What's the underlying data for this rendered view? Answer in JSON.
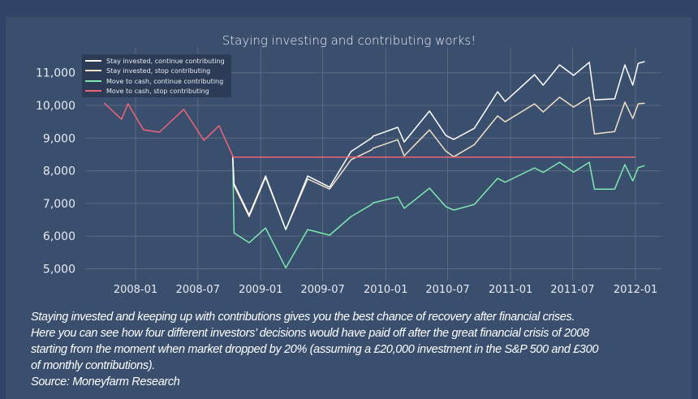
{
  "chart_data": {
    "type": "line",
    "title": "Staying investing and contributing works!",
    "xlabel": "",
    "ylabel": "",
    "ylim": [
      4900,
      11700
    ],
    "xlim": [
      "2007-08-15",
      "2012-03-01"
    ],
    "grid": true,
    "legend_placement": "top-left",
    "y_ticks": [
      "5,000",
      "6,000",
      "7,000",
      "8,000",
      "9,000",
      "10,000",
      "11,000"
    ],
    "y_tick_values": [
      5000,
      6000,
      7000,
      8000,
      9000,
      10000,
      11000
    ],
    "x_ticks": [
      "2008-01",
      "2008-07",
      "2009-01",
      "2009-07",
      "2010-01",
      "2010-07",
      "2011-01",
      "2011-07",
      "2012-01"
    ],
    "series": [
      {
        "name": "Stay invested, continue contributing",
        "color": "#ffffff",
        "points": [
          [
            "2008-10-11",
            8460
          ],
          [
            "2008-10-15",
            7600
          ],
          [
            "2008-11-28",
            6650
          ],
          [
            "2009-01-15",
            7840
          ],
          [
            "2009-03-15",
            6200
          ],
          [
            "2009-05-18",
            7840
          ],
          [
            "2009-07-21",
            7500
          ],
          [
            "2009-09-22",
            8590
          ],
          [
            "2009-11-21",
            9000
          ],
          [
            "2009-11-25",
            9060
          ],
          [
            "2010-02-05",
            9330
          ],
          [
            "2010-02-24",
            8880
          ],
          [
            "2010-05-09",
            9830
          ],
          [
            "2010-06-26",
            9080
          ],
          [
            "2010-07-19",
            8960
          ],
          [
            "2010-09-17",
            9300
          ],
          [
            "2010-11-24",
            10420
          ],
          [
            "2010-12-16",
            10120
          ],
          [
            "2011-03-12",
            10940
          ],
          [
            "2011-04-06",
            10620
          ],
          [
            "2011-05-24",
            11240
          ],
          [
            "2011-07-04",
            10920
          ],
          [
            "2011-08-19",
            11320
          ],
          [
            "2011-09-03",
            10170
          ],
          [
            "2011-11-01",
            10200
          ],
          [
            "2011-12-01",
            11240
          ],
          [
            "2011-12-24",
            10620
          ],
          [
            "2012-01-09",
            11290
          ],
          [
            "2012-01-28",
            11340
          ]
        ]
      },
      {
        "name": "Stay invested, stop contributing",
        "color": "#f0e0c8",
        "points": [
          [
            "2008-10-11",
            8460
          ],
          [
            "2008-10-15",
            7550
          ],
          [
            "2008-11-28",
            6600
          ],
          [
            "2009-01-15",
            7800
          ],
          [
            "2009-03-15",
            6200
          ],
          [
            "2009-05-18",
            7750
          ],
          [
            "2009-07-21",
            7440
          ],
          [
            "2009-09-22",
            8340
          ],
          [
            "2009-11-21",
            8640
          ],
          [
            "2009-11-25",
            8690
          ],
          [
            "2010-02-05",
            8950
          ],
          [
            "2010-02-24",
            8460
          ],
          [
            "2010-05-09",
            9250
          ],
          [
            "2010-06-26",
            8600
          ],
          [
            "2010-07-19",
            8430
          ],
          [
            "2010-09-17",
            8800
          ],
          [
            "2010-11-24",
            9680
          ],
          [
            "2010-12-16",
            9500
          ],
          [
            "2011-03-12",
            10050
          ],
          [
            "2011-04-06",
            9800
          ],
          [
            "2011-05-24",
            10250
          ],
          [
            "2011-07-04",
            9950
          ],
          [
            "2011-08-19",
            10250
          ],
          [
            "2011-09-03",
            9130
          ],
          [
            "2011-11-01",
            9200
          ],
          [
            "2011-12-01",
            10100
          ],
          [
            "2011-12-24",
            9600
          ],
          [
            "2012-01-09",
            10050
          ],
          [
            "2012-01-28",
            10070
          ]
        ]
      },
      {
        "name": "Move to cash, continue contributing",
        "color": "#7ee8b0",
        "points": [
          [
            "2008-10-11",
            8460
          ],
          [
            "2008-10-15",
            6100
          ],
          [
            "2008-11-28",
            5800
          ],
          [
            "2009-01-15",
            6250
          ],
          [
            "2009-03-15",
            5030
          ],
          [
            "2009-05-18",
            6200
          ],
          [
            "2009-07-21",
            6030
          ],
          [
            "2009-09-22",
            6600
          ],
          [
            "2009-11-21",
            6970
          ],
          [
            "2009-11-25",
            7020
          ],
          [
            "2010-02-05",
            7200
          ],
          [
            "2010-02-24",
            6850
          ],
          [
            "2010-05-09",
            7470
          ],
          [
            "2010-06-26",
            6900
          ],
          [
            "2010-07-19",
            6800
          ],
          [
            "2010-09-17",
            6970
          ],
          [
            "2010-11-24",
            7770
          ],
          [
            "2010-12-16",
            7650
          ],
          [
            "2011-03-12",
            8090
          ],
          [
            "2011-04-06",
            7950
          ],
          [
            "2011-05-24",
            8260
          ],
          [
            "2011-07-04",
            7960
          ],
          [
            "2011-08-19",
            8260
          ],
          [
            "2011-09-03",
            7440
          ],
          [
            "2011-11-01",
            7440
          ],
          [
            "2011-12-01",
            8190
          ],
          [
            "2011-12-24",
            7690
          ],
          [
            "2012-01-09",
            8100
          ],
          [
            "2012-01-28",
            8160
          ]
        ]
      },
      {
        "name": "Move to cash, stop contributing",
        "color": "#f0647a",
        "points": [
          [
            "2007-10-01",
            10075
          ],
          [
            "2007-11-21",
            9580
          ],
          [
            "2007-12-10",
            10050
          ],
          [
            "2008-01-24",
            9255
          ],
          [
            "2008-03-11",
            9180
          ],
          [
            "2008-05-21",
            9880
          ],
          [
            "2008-07-19",
            8930
          ],
          [
            "2008-09-01",
            9380
          ],
          [
            "2008-10-11",
            8460
          ],
          [
            "2008-10-12",
            8420
          ],
          [
            "2012-01-01",
            8420
          ]
        ]
      }
    ]
  },
  "caption": {
    "lines": [
      "Staying invested and keeping up with contributions gives you the best chance of recovery after financial crises.",
      "Here you can see how four different investors’ decisions would have paid off after the great financial crisis of 2008",
      "starting from the moment when market dropped by 20%  (assuming a £20,000 investment in the S&P 500 and £300",
      "of monthly contributions).",
      "Source: Moneyfarm Research"
    ]
  }
}
